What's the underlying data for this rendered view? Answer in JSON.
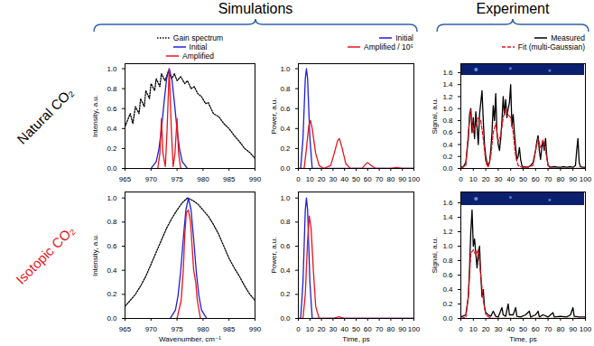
{
  "column_groups": [
    "Simulations",
    "Experiment"
  ],
  "row_labels": [
    {
      "text": "Natural CO₂",
      "color": "#000000"
    },
    {
      "text": "Isotopic CO₂",
      "color": "#e8141c"
    }
  ],
  "chart_data": [
    {
      "type": "line",
      "y_label": "Intensity, a.u.",
      "legend": "top",
      "xlim": [
        965,
        990
      ],
      "xticks": [
        965,
        970,
        975,
        980,
        985,
        990
      ],
      "ylim": [
        0,
        1.05
      ],
      "yticks": [
        {
          "value": 0,
          "label": "0.0"
        },
        {
          "value": 0.2,
          "label": "0.2"
        },
        {
          "value": 0.4,
          "label": "0.4"
        },
        {
          "value": 0.6,
          "label": "0.6"
        },
        {
          "value": 0.8,
          "label": "0.8"
        },
        {
          "value": 1.0,
          "label": "1.0"
        }
      ],
      "series": [
        {
          "name": "Gain spectrum",
          "color": "#000000",
          "line_style": "dotted",
          "x": [
            965,
            966,
            966.5,
            967,
            967.7,
            968,
            968.7,
            969,
            969.7,
            970,
            970.7,
            971,
            971.7,
            972,
            972.7,
            973.3,
            974,
            974.5,
            975,
            975.7,
            976.5,
            977,
            977.7,
            978.3,
            979,
            979.7,
            980.5,
            981,
            982,
            983,
            984,
            985,
            986,
            987,
            988,
            989,
            990
          ],
          "values": [
            0.42,
            0.55,
            0.45,
            0.62,
            0.55,
            0.7,
            0.62,
            0.78,
            0.7,
            0.85,
            0.78,
            0.9,
            0.82,
            0.95,
            0.88,
            0.97,
            0.9,
            0.95,
            0.88,
            0.92,
            0.85,
            0.88,
            0.8,
            0.82,
            0.75,
            0.72,
            0.65,
            0.66,
            0.55,
            0.52,
            0.45,
            0.4,
            0.33,
            0.27,
            0.2,
            0.16,
            0.1
          ]
        },
        {
          "name": "Initial",
          "color": "#1f1fd6",
          "line_style": "solid",
          "x": [
            970,
            971,
            971.5,
            972,
            972.5,
            973,
            973.5,
            974,
            974.5,
            975,
            975.5,
            976,
            977
          ],
          "values": [
            0,
            0.07,
            0.19,
            0.39,
            0.66,
            0.9,
            1.0,
            0.9,
            0.66,
            0.39,
            0.19,
            0.07,
            0
          ]
        },
        {
          "name": "Amplified",
          "color": "#e8141c",
          "line_style": "solid",
          "x": [
            971.3,
            971.7,
            972,
            972.3,
            972.75,
            973.1,
            973.5,
            973.9,
            974.25,
            974.6,
            975,
            975.3,
            975.7
          ],
          "values": [
            0,
            0.15,
            0.5,
            0.15,
            0.02,
            0.4,
            1.0,
            0.4,
            0.02,
            0.15,
            0.5,
            0.15,
            0
          ]
        }
      ]
    },
    {
      "type": "line",
      "y_label": "Power, a.u.",
      "legend": "top-right",
      "xlim": [
        0,
        100
      ],
      "xticks": [
        0,
        10,
        20,
        30,
        40,
        50,
        60,
        70,
        80,
        90,
        100
      ],
      "ylim": [
        0,
        1.05
      ],
      "yticks": [
        {
          "value": 0,
          "label": "0.0"
        },
        {
          "value": 0.2,
          "label": "0.2"
        },
        {
          "value": 0.4,
          "label": "0.4"
        },
        {
          "value": 0.6,
          "label": "0.6"
        },
        {
          "value": 0.8,
          "label": "0.8"
        },
        {
          "value": 1.0,
          "label": "1.0"
        }
      ],
      "series": [
        {
          "name": "Initial",
          "color": "#1f1fd6",
          "line_style": "solid",
          "x": [
            0,
            2,
            4,
            5,
            6,
            7,
            8,
            9,
            10,
            12,
            14,
            100
          ],
          "values": [
            0,
            0,
            0.3,
            0.6,
            0.9,
            1.0,
            0.9,
            0.6,
            0.3,
            0,
            0,
            0
          ]
        },
        {
          "name": "Amplified / 10⁵",
          "color": "#e8141c",
          "line_style": "solid",
          "x": [
            0,
            5,
            7,
            9,
            10.5,
            12,
            15,
            18,
            22,
            28,
            31,
            34,
            35.5,
            38,
            41,
            45,
            55,
            58,
            60,
            63,
            67,
            80,
            85,
            90,
            100
          ],
          "values": [
            0,
            0,
            0.2,
            0.43,
            0.48,
            0.4,
            0.15,
            0.03,
            0,
            0.03,
            0.15,
            0.28,
            0.3,
            0.2,
            0.05,
            0,
            0,
            0.04,
            0.06,
            0.03,
            0,
            0,
            0.01,
            0,
            0
          ]
        }
      ]
    },
    {
      "type": "line",
      "y_label": "Signal, a.u.",
      "legend": "top-right",
      "xlim": [
        0,
        100
      ],
      "xticks": [
        0,
        10,
        20,
        30,
        40,
        50,
        60,
        70,
        80,
        90,
        100
      ],
      "ylim": [
        0,
        1.75
      ],
      "yticks": [
        {
          "value": 0,
          "label": "0.0"
        },
        {
          "value": 0.2,
          "label": "0.2"
        },
        {
          "value": 0.4,
          "label": "0.4"
        },
        {
          "value": 0.6,
          "label": "0.6"
        },
        {
          "value": 0.8,
          "label": "0.8"
        },
        {
          "value": 1.0,
          "label": "1.0"
        },
        {
          "value": 1.2,
          "label": "1.2"
        },
        {
          "value": 1.4,
          "label": "1.4"
        },
        {
          "value": 1.6,
          "label": "1.6"
        }
      ],
      "series": [
        {
          "name": "Measured",
          "color": "#000000",
          "line_style": "solid",
          "x": [
            0,
            2,
            4,
            6,
            7,
            8,
            9,
            10,
            11,
            12,
            13,
            14,
            15,
            16,
            17,
            18,
            19,
            20,
            21,
            22,
            23,
            24,
            25,
            26,
            27,
            28,
            29,
            30,
            31,
            32,
            33,
            34,
            35,
            36,
            37,
            38,
            39,
            40,
            41,
            42,
            43,
            44,
            45,
            46,
            47,
            48,
            49,
            50,
            52,
            54,
            56,
            58,
            60,
            61,
            62,
            63,
            64,
            65,
            66,
            67,
            68,
            69,
            70,
            72,
            75,
            78,
            80,
            82,
            85,
            88,
            90,
            92,
            93,
            94,
            95,
            96,
            98,
            100
          ],
          "values": [
            0.02,
            0.03,
            0.1,
            0.5,
            0.9,
            1.0,
            0.6,
            0.85,
            0.5,
            0.95,
            0.7,
            0.4,
            0.9,
            1.1,
            1.3,
            0.8,
            0.4,
            0.2,
            0.1,
            0.05,
            0.1,
            0.3,
            0.6,
            1.05,
            0.8,
            1.25,
            0.6,
            0.4,
            0.3,
            0.5,
            0.8,
            1.2,
            0.9,
            1.15,
            0.85,
            1.0,
            1.1,
            1.4,
            0.7,
            0.9,
            0.6,
            0.35,
            0.15,
            0.2,
            0.35,
            0.15,
            0.05,
            0.02,
            0.03,
            0.02,
            0.05,
            0.1,
            0.3,
            0.45,
            0.55,
            0.3,
            0.15,
            0.35,
            0.45,
            0.3,
            0.5,
            0.2,
            0.05,
            0.02,
            0.03,
            0.02,
            0.02,
            0.03,
            0.02,
            0.03,
            0.02,
            0.05,
            0.3,
            0.5,
            0.1,
            0.03,
            0.02,
            0.02
          ]
        },
        {
          "name": "Fit (multi-Gaussian)",
          "color": "#e8141c",
          "line_style": "dashed",
          "x": [
            0,
            4,
            6,
            8,
            10,
            12,
            14,
            16,
            18,
            20,
            22,
            24,
            26,
            28,
            30,
            32,
            34,
            36,
            38,
            40,
            42,
            44,
            46,
            50,
            58,
            60,
            62,
            64,
            66,
            68,
            70,
            72,
            80,
            90,
            100
          ],
          "values": [
            0,
            0.05,
            0.6,
            0.97,
            0.6,
            0.7,
            0.85,
            0.8,
            0.5,
            0.1,
            0.02,
            0.2,
            0.6,
            0.75,
            0.45,
            0.55,
            0.85,
            1.0,
            0.9,
            0.85,
            0.6,
            0.2,
            0.05,
            0.01,
            0.05,
            0.3,
            0.5,
            0.35,
            0.48,
            0.3,
            0.05,
            0,
            0,
            0,
            0
          ]
        }
      ]
    },
    {
      "type": "line",
      "x_label": "Wavenumber, cm⁻¹",
      "y_label": "Intensity, a.u.",
      "xlim": [
        965,
        990
      ],
      "xticks": [
        965,
        970,
        975,
        980,
        985,
        990
      ],
      "ylim": [
        0,
        1.05
      ],
      "yticks": [
        {
          "value": 0,
          "label": "0.0"
        },
        {
          "value": 0.2,
          "label": "0.2"
        },
        {
          "value": 0.4,
          "label": "0.4"
        },
        {
          "value": 0.6,
          "label": "0.6"
        },
        {
          "value": 0.8,
          "label": "0.8"
        },
        {
          "value": 1.0,
          "label": "1.0"
        }
      ],
      "series": [
        {
          "color": "#000000",
          "line_style": "dotted",
          "x": [
            965,
            966,
            967,
            968,
            969,
            970,
            971,
            972,
            973,
            974,
            975,
            976,
            977,
            978,
            979,
            980,
            981,
            982,
            983,
            984,
            985,
            986,
            987,
            988,
            989,
            990
          ],
          "values": [
            0.1,
            0.15,
            0.2,
            0.27,
            0.35,
            0.45,
            0.55,
            0.65,
            0.75,
            0.83,
            0.9,
            0.96,
            1.0,
            0.98,
            0.95,
            0.9,
            0.85,
            0.78,
            0.7,
            0.6,
            0.5,
            0.42,
            0.35,
            0.27,
            0.2,
            0.15
          ]
        },
        {
          "color": "#1f1fd6",
          "line_style": "solid",
          "x": [
            973.7,
            974.7,
            975.2,
            975.7,
            976.2,
            976.7,
            977.2,
            977.7,
            978.2,
            978.7,
            979.2,
            979.7,
            980.7
          ],
          "values": [
            0,
            0.07,
            0.19,
            0.39,
            0.66,
            0.9,
            1.0,
            0.9,
            0.66,
            0.39,
            0.19,
            0.07,
            0
          ]
        },
        {
          "color": "#e8141c",
          "line_style": "solid",
          "x": [
            975,
            975.8,
            976.2,
            976.5,
            976.8,
            977.2,
            977.6,
            977.9,
            978.2,
            978.6,
            978.9,
            979.5
          ],
          "values": [
            0,
            0.15,
            0.4,
            0.7,
            0.88,
            0.9,
            0.8,
            0.6,
            0.4,
            0.3,
            0.15,
            0
          ]
        }
      ]
    },
    {
      "type": "line",
      "x_label": "Time, ps",
      "y_label": "Power, a.u.",
      "xlim": [
        0,
        100
      ],
      "xticks": [
        0,
        10,
        20,
        30,
        40,
        50,
        60,
        70,
        80,
        90,
        100
      ],
      "ylim": [
        0,
        1.05
      ],
      "yticks": [
        {
          "value": 0,
          "label": "0.0"
        },
        {
          "value": 0.2,
          "label": "0.2"
        },
        {
          "value": 0.4,
          "label": "0.4"
        },
        {
          "value": 0.6,
          "label": "0.6"
        },
        {
          "value": 0.8,
          "label": "0.8"
        },
        {
          "value": 1.0,
          "label": "1.0"
        }
      ],
      "series": [
        {
          "color": "#1f1fd6",
          "line_style": "solid",
          "x": [
            0,
            2,
            4,
            5,
            6,
            7,
            8,
            9,
            10,
            12,
            14,
            100
          ],
          "values": [
            0,
            0,
            0.3,
            0.6,
            0.9,
            1.0,
            0.9,
            0.6,
            0.3,
            0,
            0,
            0
          ]
        },
        {
          "color": "#e8141c",
          "line_style": "solid",
          "x": [
            0,
            4,
            6,
            8,
            9.5,
            11,
            13,
            15,
            18,
            30,
            35,
            40,
            100
          ],
          "values": [
            0,
            0,
            0.2,
            0.65,
            0.85,
            0.75,
            0.4,
            0.1,
            0,
            0,
            0.015,
            0,
            0
          ]
        }
      ]
    },
    {
      "type": "line",
      "x_label": "Time, ps",
      "y_label": "Signal, a.u.",
      "xlim": [
        0,
        100
      ],
      "xticks": [
        0,
        10,
        20,
        30,
        40,
        50,
        60,
        70,
        80,
        90,
        100
      ],
      "ylim": [
        0,
        1.75
      ],
      "yticks": [
        {
          "value": 0,
          "label": "0.0"
        },
        {
          "value": 0.2,
          "label": "0.2"
        },
        {
          "value": 0.4,
          "label": "0.4"
        },
        {
          "value": 0.6,
          "label": "0.6"
        },
        {
          "value": 0.8,
          "label": "0.8"
        },
        {
          "value": 1.0,
          "label": "1.0"
        },
        {
          "value": 1.2,
          "label": "1.2"
        },
        {
          "value": 1.4,
          "label": "1.4"
        },
        {
          "value": 1.6,
          "label": "1.6"
        }
      ],
      "series": [
        {
          "color": "#000000",
          "line_style": "solid",
          "x": [
            0,
            4,
            6,
            7,
            8,
            9,
            10,
            11,
            12,
            13,
            14,
            15,
            16,
            17,
            18,
            19,
            20,
            22,
            24,
            26,
            28,
            30,
            33,
            34,
            36,
            38,
            39,
            42,
            44,
            45,
            48,
            52,
            55,
            56,
            60,
            62,
            63,
            66,
            70,
            74,
            75,
            80,
            85,
            88,
            90,
            91,
            95,
            100
          ],
          "values": [
            0.02,
            0.05,
            0.3,
            0.7,
            1.2,
            1.5,
            1.0,
            1.1,
            0.9,
            0.7,
            0.9,
            1.0,
            0.6,
            0.3,
            0.4,
            0.15,
            0.08,
            0.05,
            0.03,
            0.1,
            0.03,
            0.02,
            0.15,
            0.05,
            0.03,
            0.2,
            0.05,
            0.05,
            0.15,
            0.03,
            0.02,
            0.05,
            0.1,
            0.02,
            0.05,
            0.1,
            0.02,
            0.05,
            0.02,
            0.08,
            0.02,
            0.03,
            0.02,
            0.05,
            0.15,
            0.03,
            0.02,
            0.02
          ]
        },
        {
          "color": "#e8141c",
          "line_style": "dashed",
          "x": [
            0,
            4,
            6,
            8,
            10,
            12,
            14,
            16,
            18,
            20,
            24,
            100
          ],
          "values": [
            0,
            0.02,
            0.3,
            0.9,
            0.95,
            0.88,
            0.95,
            0.6,
            0.25,
            0.05,
            0,
            0
          ]
        }
      ]
    }
  ]
}
